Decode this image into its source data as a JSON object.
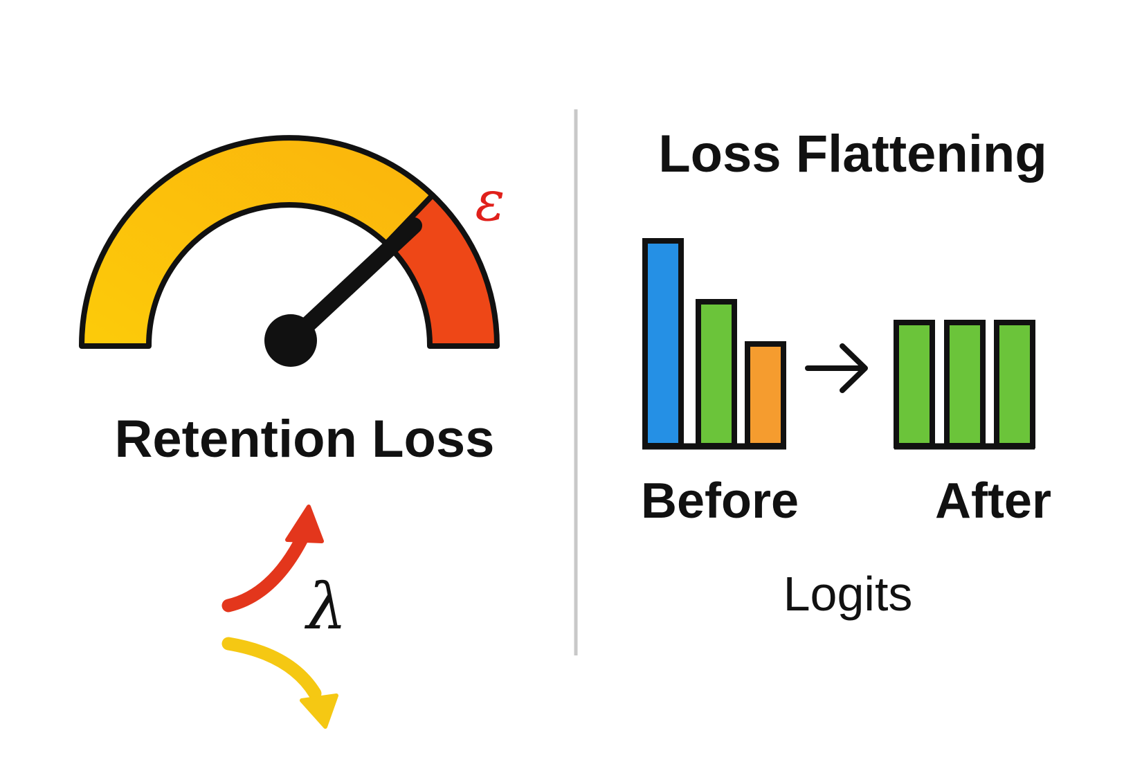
{
  "left_panel": {
    "title": "Retention Loss",
    "threshold_symbol": "ε",
    "weight_symbol": "λ"
  },
  "right_panel": {
    "title": "Loss Flattening",
    "before_label": "Before",
    "after_label": "After",
    "axis_caption": "Logits"
  },
  "colors": {
    "gauge_safe": "#FBC40E",
    "gauge_danger": "#EE4717",
    "epsilon": "#E0201B",
    "arrow_up": "#E3361C",
    "arrow_down": "#F5C813",
    "bar_blue": "#2590E5",
    "bar_green": "#6BC43A",
    "bar_orange": "#F59C2F",
    "divider": "#C8C8C8",
    "ink": "#111111"
  },
  "icons": {
    "gauge": "speedometer-icon",
    "flow_arrow": "right-arrow-icon",
    "increase_arrow": "curved-up-arrow-icon",
    "decrease_arrow": "curved-down-arrow-icon"
  }
}
